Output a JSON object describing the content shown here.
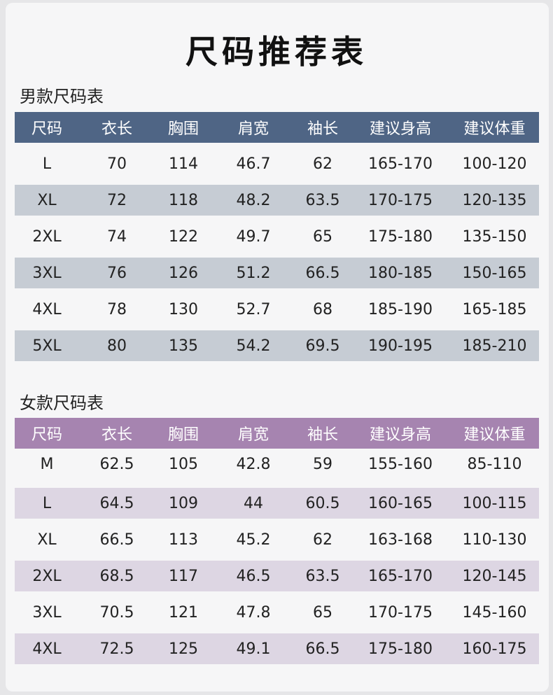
{
  "title": "尺码推荐表",
  "male": {
    "label": "男款尺码表",
    "headers": [
      "尺码",
      "衣长",
      "胸围",
      "肩宽",
      "袖长",
      "建议身高",
      "建议体重"
    ],
    "rows": [
      [
        "L",
        "70",
        "114",
        "46.7",
        "62",
        "165-170",
        "100-120"
      ],
      [
        "XL",
        "72",
        "118",
        "48.2",
        "63.5",
        "170-175",
        "120-135"
      ],
      [
        "2XL",
        "74",
        "122",
        "49.7",
        "65",
        "175-180",
        "135-150"
      ],
      [
        "3XL",
        "76",
        "126",
        "51.2",
        "66.5",
        "180-185",
        "150-165"
      ],
      [
        "4XL",
        "78",
        "130",
        "52.7",
        "68",
        "185-190",
        "165-185"
      ],
      [
        "5XL",
        "80",
        "135",
        "54.2",
        "69.5",
        "190-195",
        "185-210"
      ]
    ]
  },
  "female": {
    "label": "女款尺码表",
    "headers": [
      "尺码",
      "衣长",
      "胸围",
      "肩宽",
      "袖长",
      "建议身高",
      "建议体重"
    ],
    "rows": [
      [
        "M",
        "62.5",
        "105",
        "42.8",
        "59",
        "155-160",
        "85-110"
      ],
      [
        "L",
        "64.5",
        "109",
        "44",
        "60.5",
        "160-165",
        "100-115"
      ],
      [
        "XL",
        "66.5",
        "113",
        "45.2",
        "62",
        "163-168",
        "110-130"
      ],
      [
        "2XL",
        "68.5",
        "117",
        "46.5",
        "63.5",
        "165-170",
        "120-145"
      ],
      [
        "3XL",
        "70.5",
        "121",
        "47.8",
        "65",
        "170-175",
        "145-160"
      ],
      [
        "4XL",
        "72.5",
        "125",
        "49.1",
        "66.5",
        "175-180",
        "160-175"
      ]
    ]
  },
  "colors": {
    "male_header": "#4f6585",
    "male_alt_row": "#c6ccd4",
    "female_header": "#a684b0",
    "female_alt_row": "#ddd6e3"
  }
}
